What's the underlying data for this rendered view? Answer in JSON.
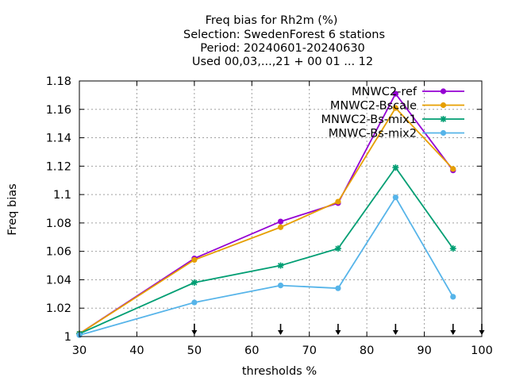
{
  "chart_data": {
    "type": "line",
    "title_lines": [
      "Freq bias  for Rh2m (%)",
      "Selection: SwedenForest      6 stations",
      "Period: 20240601-20240630",
      "Used 00,03,...,21 + 00 01 ... 12"
    ],
    "xlabel": "thresholds %",
    "ylabel": "Freq bias",
    "xlim": [
      30,
      100
    ],
    "ylim": [
      1,
      1.18
    ],
    "xticks": [
      "30",
      "40",
      "50",
      "60",
      "70",
      "80",
      "90",
      "100"
    ],
    "yticks": [
      "1",
      "1.02",
      "1.04",
      "1.06",
      "1.08",
      "1.1",
      "1.12",
      "1.14",
      "1.16",
      "1.18"
    ],
    "grid": true,
    "legend_position": "top-right",
    "arrow_markers_x": [
      50,
      65,
      75,
      85,
      95,
      100
    ],
    "x": [
      30,
      50,
      65,
      75,
      85,
      95
    ],
    "series": [
      {
        "name": "MNWC2-ref",
        "color": "#9400d3",
        "marker": "circle",
        "values": [
          1.002,
          1.055,
          1.081,
          1.094,
          1.171,
          1.117
        ]
      },
      {
        "name": "MNWC2-Bscale",
        "color": "#e69f00",
        "marker": "circle",
        "values": [
          1.002,
          1.054,
          1.077,
          1.095,
          1.161,
          1.118
        ]
      },
      {
        "name": "MNWC2-Bs-mix1",
        "color": "#009e73",
        "marker": "star",
        "values": [
          1.002,
          1.038,
          1.05,
          1.062,
          1.119,
          1.062
        ]
      },
      {
        "name": "MNWC-Bs-mix2",
        "color": "#56b4e9",
        "marker": "circle",
        "values": [
          1.001,
          1.024,
          1.036,
          1.034,
          1.098,
          1.028
        ]
      }
    ]
  }
}
